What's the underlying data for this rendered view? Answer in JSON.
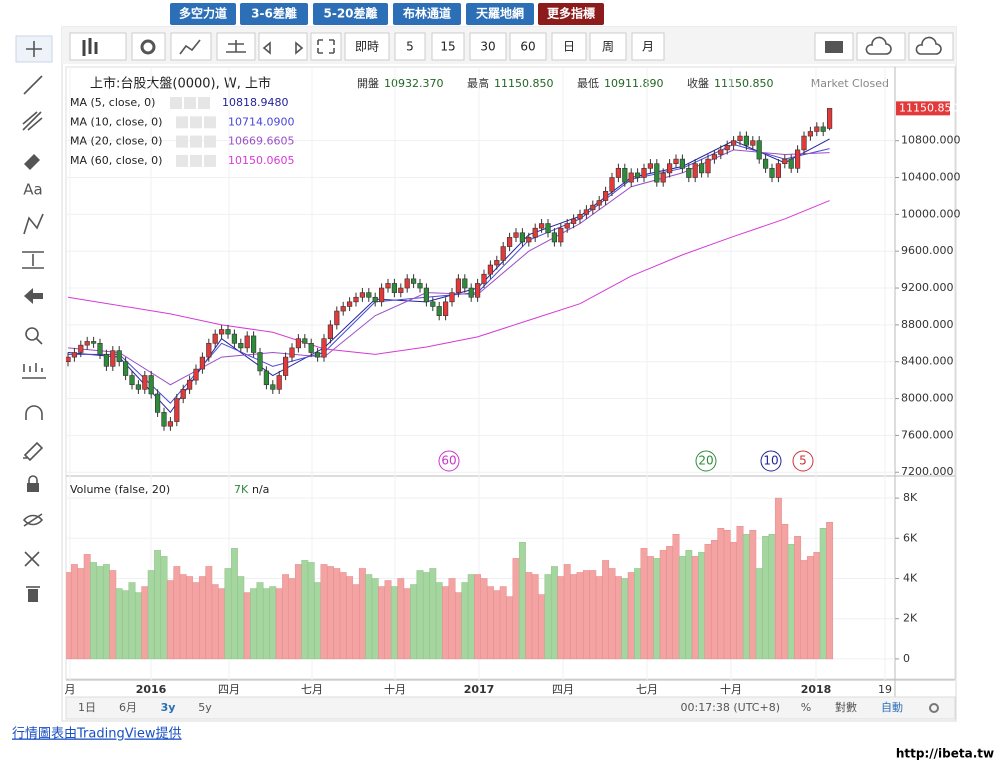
{
  "top_buttons": [
    "多空力道",
    "3-6差離",
    "5-20差離",
    "布林通道",
    "天羅地網",
    "更多指標"
  ],
  "intervals": [
    "即時",
    "5",
    "15",
    "30",
    "60",
    "日",
    "周",
    "月"
  ],
  "header": {
    "symbol": "上市:台股大盤(0000), W, 上市",
    "fields": [
      {
        "name": "開盤",
        "value": "10932.370"
      },
      {
        "name": "最高",
        "value": "11150.850"
      },
      {
        "name": "最低",
        "value": "10911.890"
      },
      {
        "name": "收盤",
        "value": "11150.850"
      }
    ],
    "status": "Market Closed"
  },
  "left_tools": [
    "Aa"
  ],
  "chart_data": {
    "type": "candlestick",
    "up_color": "#e2393b",
    "down_color": "#2e8b3a",
    "open": [
      8400,
      8450,
      8500,
      8580,
      8620,
      8600,
      8480,
      8350,
      8520,
      8400,
      8250,
      8150,
      8100,
      8250,
      8050,
      7850,
      7700,
      7750,
      8000,
      8100,
      8200,
      8320,
      8450,
      8600,
      8700,
      8750,
      8700,
      8600,
      8550,
      8680,
      8500,
      8300,
      8150,
      8100,
      8250,
      8450,
      8550,
      8650,
      8600,
      8500,
      8450,
      8650,
      8800,
      8950,
      9000,
      9050,
      9100,
      9150,
      9100,
      9050,
      9200,
      9250,
      9150,
      9200,
      9300,
      9250,
      9200,
      9050,
      9000,
      8900,
      9050,
      9150,
      9300,
      9200,
      9100,
      9250,
      9350,
      9450,
      9500,
      9650,
      9750,
      9800,
      9700,
      9750,
      9850,
      9900,
      9800,
      9700,
      9850,
      9900,
      9950,
      10000,
      10050,
      10100,
      10150,
      10250,
      10400,
      10500,
      10350,
      10450,
      10400,
      10500,
      10550,
      10350,
      10450,
      10550,
      10600,
      10500,
      10400,
      10550,
      10450,
      10600,
      10650,
      10700,
      10750,
      10800,
      10850,
      10750,
      10800,
      10600,
      10500,
      10400,
      10550,
      10600,
      10500,
      10700,
      10850,
      10900,
      10950,
      10932.37
    ],
    "high": [
      8500,
      8550,
      8630,
      8670,
      8670,
      8650,
      8530,
      8570,
      8570,
      8450,
      8300,
      8200,
      8300,
      8300,
      8100,
      7900,
      7800,
      8050,
      8150,
      8250,
      8370,
      8500,
      8650,
      8750,
      8800,
      8800,
      8750,
      8650,
      8730,
      8730,
      8550,
      8350,
      8200,
      8300,
      8500,
      8600,
      8700,
      8700,
      8650,
      8550,
      8700,
      8850,
      9000,
      9050,
      9100,
      9150,
      9200,
      9200,
      9150,
      9250,
      9300,
      9300,
      9250,
      9350,
      9350,
      9300,
      9250,
      9100,
      9050,
      9100,
      9200,
      9350,
      9350,
      9250,
      9300,
      9400,
      9500,
      9550,
      9700,
      9800,
      9850,
      9850,
      9800,
      9900,
      9950,
      9950,
      9850,
      9900,
      9950,
      10000,
      10050,
      10100,
      10150,
      10200,
      10300,
      10450,
      10550,
      10550,
      10500,
      10500,
      10550,
      10600,
      10600,
      10500,
      10600,
      10650,
      10650,
      10550,
      10600,
      10600,
      10650,
      10700,
      10750,
      10800,
      10850,
      10900,
      10900,
      10850,
      10850,
      10650,
      10550,
      10600,
      10650,
      10650,
      10750,
      10900,
      10950,
      11000,
      11000,
      11150.85
    ],
    "low": [
      8350,
      8400,
      8450,
      8530,
      8550,
      8430,
      8300,
      8300,
      8350,
      8200,
      8100,
      8050,
      8050,
      8000,
      7800,
      7650,
      7650,
      7700,
      7950,
      8050,
      8150,
      8270,
      8400,
      8550,
      8650,
      8650,
      8550,
      8500,
      8500,
      8450,
      8250,
      8100,
      8050,
      8050,
      8200,
      8400,
      8500,
      8550,
      8450,
      8400,
      8400,
      8600,
      8750,
      8900,
      8950,
      9000,
      9050,
      9050,
      9000,
      9000,
      9150,
      9100,
      9100,
      9150,
      9200,
      9150,
      9000,
      8950,
      8850,
      8850,
      9000,
      9100,
      9150,
      9050,
      9050,
      9200,
      9300,
      9400,
      9450,
      9600,
      9700,
      9650,
      9650,
      9700,
      9800,
      9750,
      9650,
      9650,
      9800,
      9850,
      9900,
      9950,
      10000,
      10050,
      10100,
      10200,
      10350,
      10300,
      10300,
      10350,
      10350,
      10450,
      10300,
      10300,
      10400,
      10500,
      10450,
      10350,
      10350,
      10400,
      10400,
      10550,
      10600,
      10650,
      10700,
      10750,
      10700,
      10700,
      10550,
      10450,
      10350,
      10350,
      10500,
      10450,
      10450,
      10650,
      10800,
      10850,
      10850,
      10911.89
    ],
    "close": [
      8450,
      8500,
      8580,
      8620,
      8600,
      8480,
      8350,
      8520,
      8400,
      8250,
      8150,
      8100,
      8250,
      8050,
      7850,
      7700,
      7750,
      8000,
      8100,
      8200,
      8320,
      8450,
      8600,
      8700,
      8750,
      8700,
      8600,
      8550,
      8680,
      8500,
      8300,
      8150,
      8100,
      8250,
      8450,
      8550,
      8650,
      8600,
      8500,
      8450,
      8650,
      8800,
      8950,
      9000,
      9050,
      9100,
      9150,
      9100,
      9050,
      9200,
      9250,
      9150,
      9200,
      9300,
      9250,
      9200,
      9050,
      9000,
      8900,
      9050,
      9150,
      9300,
      9200,
      9100,
      9250,
      9350,
      9450,
      9500,
      9650,
      9750,
      9800,
      9700,
      9750,
      9850,
      9900,
      9800,
      9700,
      9850,
      9900,
      9950,
      10000,
      10050,
      10100,
      10150,
      10250,
      10400,
      10500,
      10350,
      10450,
      10400,
      10500,
      10550,
      10350,
      10450,
      10550,
      10600,
      10500,
      10400,
      10550,
      10450,
      10600,
      10650,
      10700,
      10750,
      10800,
      10850,
      10750,
      10800,
      10600,
      10500,
      10400,
      10550,
      10600,
      10500,
      10700,
      10850,
      10900,
      10950,
      10900,
      11150.85
    ],
    "ylim": [
      7170,
      11600
    ],
    "yticks": [
      {
        "value": 7200,
        "label": "7200.000"
      },
      {
        "value": 7600,
        "label": "7600.000"
      },
      {
        "value": 8000,
        "label": "8000.000"
      },
      {
        "value": 8400,
        "label": "8400.000"
      },
      {
        "value": 8800,
        "label": "8800.000"
      },
      {
        "value": 9200,
        "label": "9200.000"
      },
      {
        "value": 9600,
        "label": "9600.000"
      },
      {
        "value": 10000,
        "label": "10000.000"
      },
      {
        "value": 10400,
        "label": "10400.000"
      },
      {
        "value": 10800,
        "label": "10800.000"
      }
    ],
    "last_price_label": "11150.850",
    "ma": [
      {
        "name": "MA (5, close, 0)",
        "value_label": "10818.9480",
        "color": "#23239c",
        "x": [
          0,
          8,
          16,
          24,
          32,
          40,
          48,
          56,
          64,
          72,
          80,
          88,
          96,
          104,
          112,
          119
        ],
        "values": [
          8500,
          8450,
          7850,
          8650,
          8250,
          8550,
          9080,
          9050,
          9200,
          9780,
          9980,
          10400,
          10520,
          10800,
          10560,
          10818.95
        ]
      },
      {
        "name": "MA (10, close, 0)",
        "value_label": "10714.0900",
        "color": "#4848d8",
        "x": [
          0,
          8,
          16,
          24,
          32,
          40,
          48,
          56,
          64,
          72,
          80,
          88,
          96,
          104,
          112,
          119
        ],
        "values": [
          8480,
          8480,
          7950,
          8600,
          8350,
          8500,
          9050,
          9100,
          9150,
          9720,
          9950,
          10380,
          10500,
          10760,
          10600,
          10714.09
        ]
      },
      {
        "name": "MA (20, close, 0)",
        "value_label": "10669.6605",
        "color": "#9a4fc8",
        "x": [
          0,
          8,
          16,
          24,
          32,
          40,
          48,
          56,
          64,
          72,
          80,
          88,
          96,
          104,
          112,
          119
        ],
        "values": [
          8550,
          8500,
          8150,
          8450,
          8500,
          8450,
          8900,
          9150,
          9130,
          9600,
          9900,
          10300,
          10450,
          10700,
          10650,
          10669.66
        ]
      },
      {
        "name": "MA (60, close, 0)",
        "value_label": "10150.0605",
        "color": "#d63ad6",
        "x": [
          0,
          16,
          24,
          32,
          40,
          48,
          56,
          64,
          72,
          80,
          88,
          96,
          104,
          112,
          119
        ],
        "values": [
          9100,
          8920,
          8800,
          8720,
          8540,
          8480,
          8560,
          8670,
          8850,
          9030,
          9330,
          9560,
          9760,
          9950,
          10150.06
        ]
      }
    ],
    "ma_markers": [
      {
        "label": "60",
        "color": "#cc33cc"
      },
      {
        "label": "20",
        "color": "#2e8b3a"
      },
      {
        "label": "10",
        "color": "#23239c"
      },
      {
        "label": "5",
        "color": "#cc3333"
      }
    ],
    "volume": {
      "name": "Volume (false, 20)",
      "value_label": "7K",
      "extra": "n/a",
      "up_color": "#f4a3a3",
      "down_color": "#a6d6a0",
      "values": [
        4300,
        4700,
        4500,
        5200,
        4800,
        4600,
        4700,
        4400,
        3500,
        3400,
        3800,
        3300,
        3600,
        4400,
        5400,
        5100,
        3900,
        4600,
        4200,
        4100,
        3800,
        4100,
        4600,
        3700,
        3500,
        4500,
        5500,
        4100,
        3300,
        3500,
        3800,
        3500,
        3600,
        3500,
        4200,
        4000,
        4700,
        4900,
        4800,
        3800,
        4700,
        4600,
        4500,
        4300,
        4100,
        3700,
        4500,
        4200,
        4000,
        3600,
        3900,
        3600,
        4000,
        3500,
        3700,
        4400,
        4300,
        4500,
        3800,
        3600,
        4000,
        3300,
        3800,
        4200,
        4200,
        4000,
        3600,
        3400,
        3600,
        3100,
        5000,
        5800,
        4300,
        4200,
        3200,
        4200,
        4600,
        4100,
        4700,
        4200,
        4300,
        4400,
        4400,
        4100,
        4900,
        4500,
        4100,
        4000,
        4300,
        4500,
        5500,
        5100,
        5000,
        5400,
        5600,
        6200,
        5100,
        5400,
        5100,
        5300,
        5700,
        5900,
        6500,
        6400,
        5800,
        6600,
        6200,
        6400,
        4500,
        6100,
        6200,
        8000,
        6700,
        5700,
        6100,
        4900,
        5100,
        5300,
        6500,
        6800
      ],
      "ylim": [
        -1050,
        8950
      ],
      "yticks": [
        0,
        {
          "value": 2000,
          "label": "2K"
        },
        {
          "value": 4000,
          "label": "4K"
        },
        {
          "value": 6000,
          "label": "6K"
        },
        {
          "value": 8000,
          "label": "8K"
        }
      ]
    },
    "x_labels": [
      "月",
      "2016",
      "四月",
      "七月",
      "十月",
      "2017",
      "四月",
      "七月",
      "十月",
      "2018",
      "19"
    ]
  },
  "range_buttons": [
    "1日",
    "6月",
    "3y",
    "5y"
  ],
  "clock": "00:17:38 (UTC+8)",
  "scale_buttons": [
    "%",
    "對數",
    "自動"
  ],
  "footer_link": "行情圖表由TradingView提供",
  "watermark": "http://ibeta.tw"
}
